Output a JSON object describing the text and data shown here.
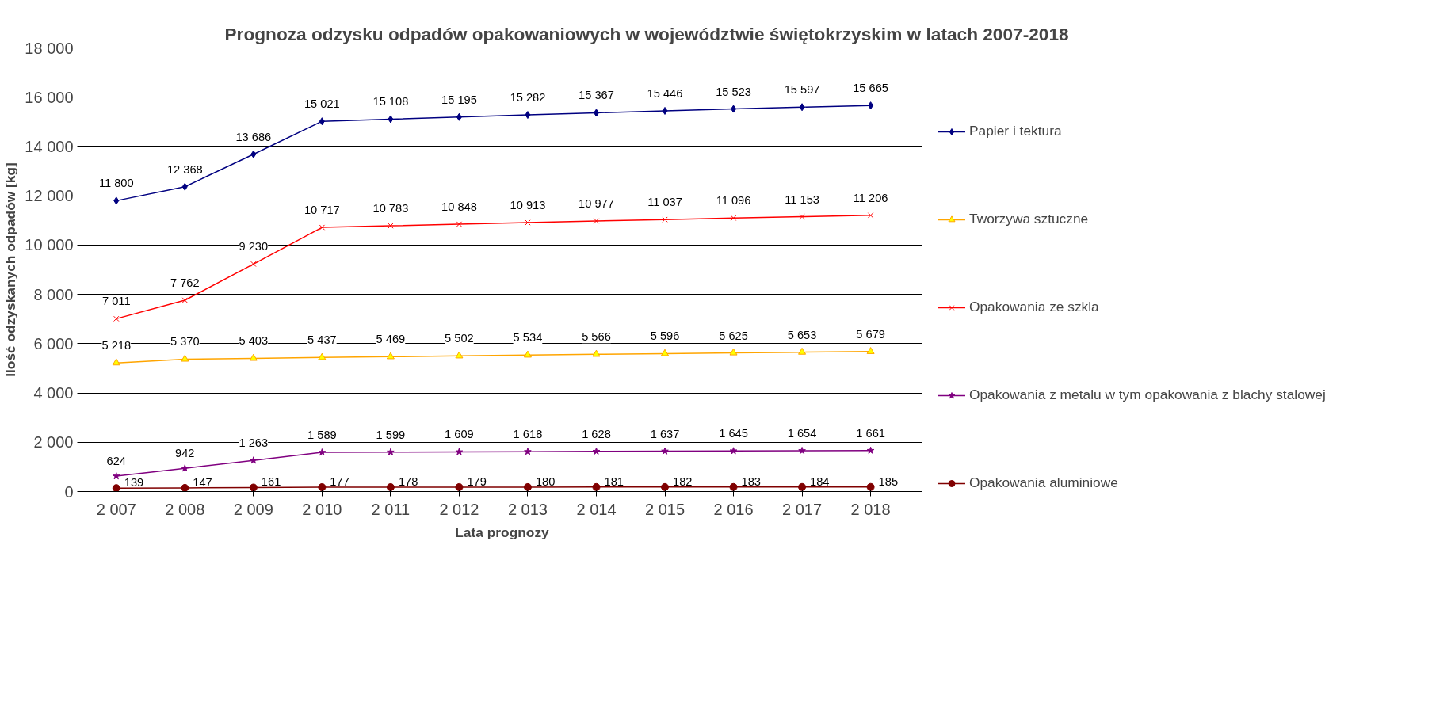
{
  "chart_data": {
    "type": "line",
    "title": "Prognoza odzysku odpadów opakowaniowych w województwie świętokrzyskim w latach 2007-2018",
    "xlabel": "Lata prognozy",
    "ylabel": "Ilość odzyskanych odpadów [kg]",
    "categories": [
      "2 007",
      "2 008",
      "2 009",
      "2 010",
      "2 011",
      "2 012",
      "2 013",
      "2 014",
      "2 015",
      "2 016",
      "2 017",
      "2 018"
    ],
    "series": [
      {
        "name": "Papier i tektura",
        "color": "#000080",
        "marker": "diamond",
        "values": [
          11800,
          12368,
          13686,
          15021,
          15108,
          15195,
          15282,
          15367,
          15446,
          15523,
          15597,
          15665
        ]
      },
      {
        "name": "Tworzywa sztuczne",
        "color": "#ffa500",
        "marker": "triangle",
        "values": [
          5218,
          5370,
          5403,
          5437,
          5469,
          5502,
          5534,
          5566,
          5596,
          5625,
          5653,
          5679
        ]
      },
      {
        "name": "Opakowania ze szkla",
        "color": "#ff0000",
        "marker": "cross",
        "values": [
          7011,
          7762,
          9230,
          10717,
          10783,
          10848,
          10913,
          10977,
          11037,
          11096,
          11153,
          11206
        ]
      },
      {
        "name": "Opakowania z metalu w tym opakowania z blachy stalowej",
        "color": "#800080",
        "marker": "star",
        "values": [
          624,
          942,
          1263,
          1589,
          1599,
          1609,
          1618,
          1628,
          1637,
          1645,
          1654,
          1661
        ]
      },
      {
        "name": "Opakowania aluminiowe",
        "color": "#800000",
        "marker": "circle",
        "values": [
          139,
          147,
          161,
          177,
          178,
          179,
          180,
          181,
          182,
          183,
          184,
          185
        ]
      }
    ],
    "ylim": [
      0,
      18000
    ],
    "yticks": [
      {
        "value": 0,
        "label": "0"
      },
      {
        "value": 2000,
        "label": "2 000"
      },
      {
        "value": 4000,
        "label": "4 000"
      },
      {
        "value": 6000,
        "label": "6 000"
      },
      {
        "value": 8000,
        "label": "8 000"
      },
      {
        "value": 10000,
        "label": "10 000"
      },
      {
        "value": 12000,
        "label": "12 000"
      },
      {
        "value": 14000,
        "label": "14 000"
      },
      {
        "value": 16000,
        "label": "16 000"
      },
      {
        "value": 18000,
        "label": "18 000"
      }
    ],
    "grid": "y",
    "legend": "right",
    "data_labels": true,
    "line_style": "solid"
  }
}
